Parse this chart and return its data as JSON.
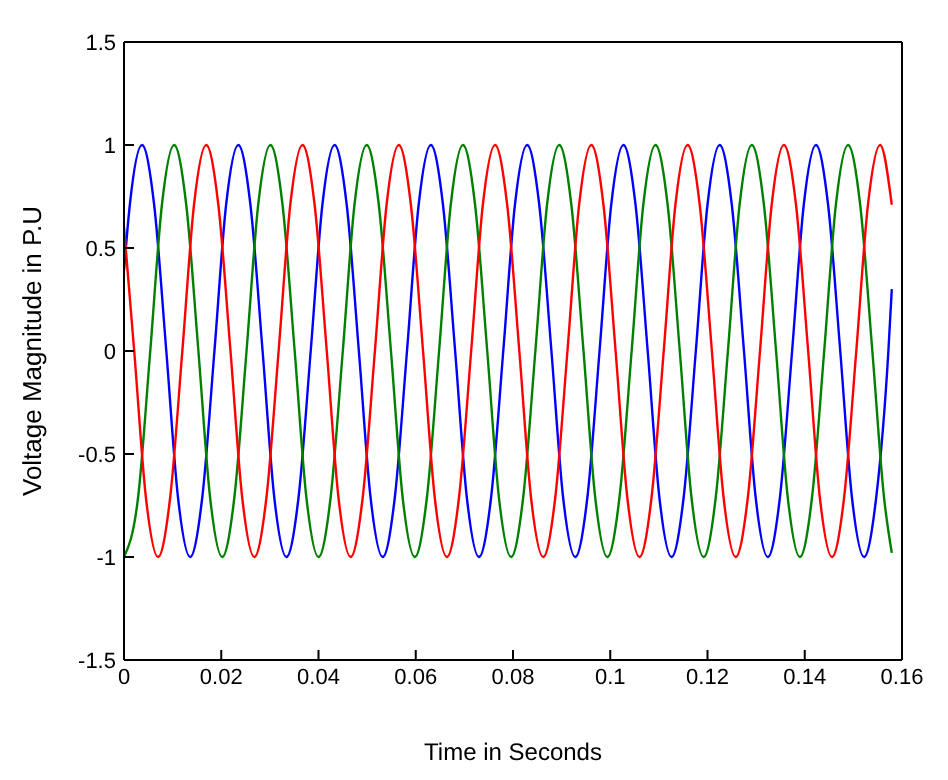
{
  "chart_data": {
    "type": "line",
    "xlabel": "Time in Seconds",
    "ylabel": "Voltage Magnitude in P.U",
    "xlim": [
      0,
      0.16
    ],
    "xticks": [
      0,
      0.02,
      0.04,
      0.06,
      0.08,
      0.1,
      0.12,
      0.14,
      0.16
    ],
    "ylim": [
      -1.5,
      1.5
    ],
    "yticks": [
      -1.5,
      -1,
      -0.5,
      0,
      0.5,
      1,
      1.5
    ],
    "line_style": "solid",
    "series": [
      {
        "color": "#0000ff",
        "x": [
          0,
          0.0012,
          0.0037,
          0.0062,
          0.0087,
          0.0111,
          0.0136,
          0.0161,
          0.0186,
          0.021,
          0.0235,
          0.026,
          0.0285,
          0.0309,
          0.0334,
          0.0359,
          0.0384,
          0.0408,
          0.0433,
          0.0458,
          0.0483,
          0.0507,
          0.0532,
          0.0557,
          0.0582,
          0.0606,
          0.0631,
          0.0656,
          0.0681,
          0.0705,
          0.073,
          0.0755,
          0.078,
          0.0804,
          0.0829,
          0.0854,
          0.0879,
          0.0903,
          0.0928,
          0.0953,
          0.0978,
          0.1002,
          0.1027,
          0.1052,
          0.1077,
          0.1101,
          0.1126,
          0.1151,
          0.1176,
          0.12,
          0.1225,
          0.125,
          0.1275,
          0.1299,
          0.1324,
          0.1349,
          0.1374,
          0.1398,
          0.1423,
          0.1448,
          0.1473,
          0.1497,
          0.1522,
          0.1547,
          0.1572,
          0.1579
        ],
        "values": [
          0.39,
          0.71,
          1,
          0.71,
          0,
          -0.71,
          -1,
          -0.71,
          0,
          0.71,
          1,
          0.71,
          0,
          -0.71,
          -1,
          -0.71,
          0,
          0.71,
          1,
          0.71,
          0,
          -0.71,
          -1,
          -0.71,
          0,
          0.71,
          1,
          0.71,
          0,
          -0.71,
          -1,
          -0.71,
          0,
          0.71,
          1,
          0.71,
          0,
          -0.71,
          -1,
          -0.71,
          0,
          0.71,
          1,
          0.71,
          0,
          -0.71,
          -1,
          -0.71,
          0,
          0.71,
          1,
          0.71,
          0,
          -0.71,
          -1,
          -0.71,
          0,
          0.71,
          1,
          0.71,
          0,
          -0.71,
          -1,
          -0.71,
          0,
          0.3
        ]
      },
      {
        "color": "#008000",
        "x": [
          0,
          0.0029,
          0.0054,
          0.0078,
          0.0103,
          0.0128,
          0.0153,
          0.0177,
          0.0202,
          0.0227,
          0.0252,
          0.0276,
          0.0301,
          0.0326,
          0.0351,
          0.0375,
          0.04,
          0.0425,
          0.045,
          0.0474,
          0.0499,
          0.0524,
          0.0549,
          0.0573,
          0.0598,
          0.0623,
          0.0648,
          0.0672,
          0.0697,
          0.0722,
          0.0747,
          0.0771,
          0.0796,
          0.0821,
          0.0846,
          0.087,
          0.0895,
          0.092,
          0.0945,
          0.0969,
          0.0994,
          0.1019,
          0.1044,
          0.1068,
          0.1093,
          0.1118,
          0.1143,
          0.1167,
          0.1192,
          0.1217,
          0.1242,
          0.1266,
          0.1291,
          0.1316,
          0.1341,
          0.1365,
          0.139,
          0.1415,
          0.144,
          0.1464,
          0.1489,
          0.1514,
          0.1539,
          0.1563,
          0.1579
        ],
        "values": [
          -1,
          -0.71,
          0,
          0.71,
          1,
          0.71,
          0,
          -0.71,
          -1,
          -0.71,
          0,
          0.71,
          1,
          0.71,
          0,
          -0.71,
          -1,
          -0.71,
          0,
          0.71,
          1,
          0.71,
          0,
          -0.71,
          -1,
          -0.71,
          0,
          0.71,
          1,
          0.71,
          0,
          -0.71,
          -1,
          -0.71,
          0,
          0.71,
          1,
          0.71,
          0,
          -0.71,
          -1,
          -0.71,
          0,
          0.71,
          1,
          0.71,
          0,
          -0.71,
          -1,
          -0.71,
          0,
          0.71,
          1,
          0.71,
          0,
          -0.71,
          -1,
          -0.71,
          0,
          0.71,
          1,
          0.71,
          0,
          -0.71,
          -0.98
        ]
      },
      {
        "color": "#ff0000",
        "x": [
          0,
          0.0021,
          0.0045,
          0.007,
          0.0095,
          0.012,
          0.0144,
          0.0169,
          0.0194,
          0.0219,
          0.0243,
          0.0268,
          0.0293,
          0.0318,
          0.0342,
          0.0367,
          0.0392,
          0.0417,
          0.0441,
          0.0466,
          0.0491,
          0.0516,
          0.054,
          0.0565,
          0.059,
          0.0615,
          0.0639,
          0.0664,
          0.0689,
          0.0714,
          0.0738,
          0.0763,
          0.0788,
          0.0813,
          0.0837,
          0.0862,
          0.0887,
          0.0912,
          0.0936,
          0.0961,
          0.0986,
          0.1011,
          0.1035,
          0.106,
          0.1085,
          0.111,
          0.1134,
          0.1159,
          0.1184,
          0.1209,
          0.1233,
          0.1258,
          0.1283,
          0.1308,
          0.1332,
          0.1357,
          0.1382,
          0.1407,
          0.1431,
          0.1456,
          0.1481,
          0.1506,
          0.153,
          0.1555,
          0.1579
        ],
        "values": [
          0.6,
          0,
          -0.71,
          -1,
          -0.71,
          0,
          0.71,
          1,
          0.71,
          0,
          -0.71,
          -1,
          -0.71,
          0,
          0.71,
          1,
          0.71,
          0,
          -0.71,
          -1,
          -0.71,
          0,
          0.71,
          1,
          0.71,
          0,
          -0.71,
          -1,
          -0.71,
          0,
          0.71,
          1,
          0.71,
          0,
          -0.71,
          -1,
          -0.71,
          0,
          0.71,
          1,
          0.71,
          0,
          -0.71,
          -1,
          -0.71,
          0,
          0.71,
          1,
          0.71,
          0,
          -0.71,
          -1,
          -0.71,
          0,
          0.71,
          1,
          0.71,
          0,
          -0.71,
          -1,
          -0.71,
          0,
          0.71,
          1,
          0.71
        ]
      }
    ]
  }
}
